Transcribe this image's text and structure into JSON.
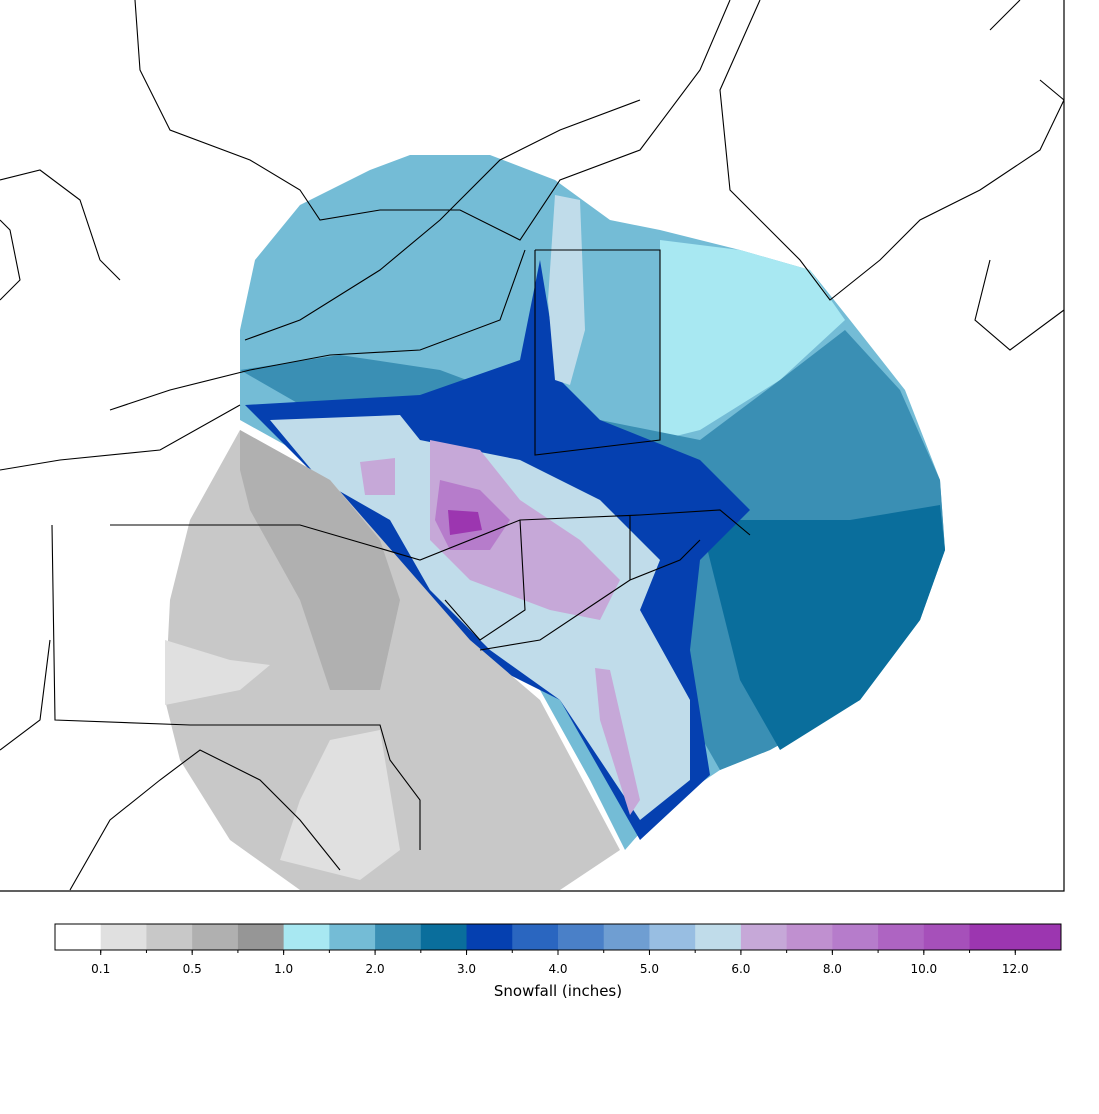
{
  "colorbar": {
    "label": "Snowfall (inches)",
    "ticks": [
      "0.1",
      "0.5",
      "1.0",
      "2.0",
      "3.0",
      "4.0",
      "5.0",
      "6.0",
      "8.0",
      "10.0",
      "12.0"
    ],
    "colors": [
      "#ffffff",
      "#e0e0e0",
      "#c8c8c8",
      "#b0b0b0",
      "#969696",
      "#a8e8f2",
      "#74bcd6",
      "#3a8fb4",
      "#0a6e9c",
      "#0540b0",
      "#2a66c0",
      "#4a80c8",
      "#6f9ed2",
      "#98bee2",
      "#c0dcea",
      "#c6a8d8",
      "#c090d0",
      "#b67ccb",
      "#ae64c2",
      "#a650ba",
      "#9c36b0",
      "#9c36b0"
    ]
  }
}
